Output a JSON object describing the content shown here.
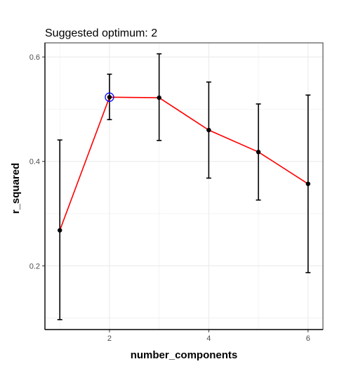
{
  "chart_data": {
    "type": "line",
    "title": "Suggested optimum: 2",
    "xlabel": "number_components",
    "ylabel": "r_squared",
    "x": [
      1,
      2,
      3,
      4,
      5,
      6
    ],
    "series": [
      {
        "values": [
          0.268,
          0.523,
          0.522,
          0.46,
          0.418,
          0.357
        ],
        "lower": [
          0.097,
          0.48,
          0.44,
          0.368,
          0.326,
          0.187
        ],
        "upper": [
          0.441,
          0.567,
          0.606,
          0.552,
          0.51,
          0.527
        ]
      }
    ],
    "highlight": {
      "x": 2,
      "y": 0.523
    },
    "xlim": [
      0.7,
      6.3
    ],
    "ylim": [
      0.078,
      0.627
    ],
    "x_ticks": [
      2,
      4,
      6
    ],
    "y_ticks": [
      0.2,
      0.4,
      0.6
    ],
    "y_tick_labels": [
      "0.2",
      "0.4",
      "0.6"
    ],
    "x_tick_labels": [
      "2",
      "4",
      "6"
    ],
    "grid": true,
    "colors": {
      "line": "#ff0000",
      "points": "#000000",
      "errorbars": "#000000",
      "highlight": "#0000ff",
      "grid": "#ebebeb"
    }
  }
}
